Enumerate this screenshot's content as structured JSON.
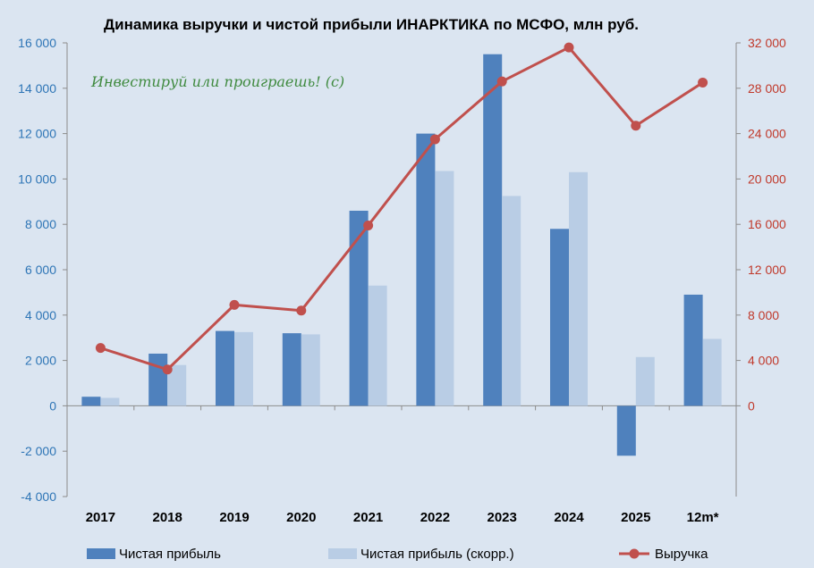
{
  "chart_data": {
    "type": "bar",
    "title": "Динамика выручки и чистой прибыли ИНАРКТИКА по МСФО, млн руб.",
    "watermark": "Инвестируй или проиграешь! (с)",
    "categories": [
      "2017",
      "2018",
      "2019",
      "2020",
      "2021",
      "2022",
      "2023",
      "2024",
      "2025",
      "12m*"
    ],
    "series": [
      {
        "name": "Чистая прибыль",
        "type": "bar",
        "axis": "left",
        "color": "#4f81bd",
        "values": [
          400,
          2300,
          3300,
          3200,
          8600,
          12000,
          15500,
          7800,
          -2200,
          4900
        ]
      },
      {
        "name": "Чистая прибыль (скорр.)",
        "type": "bar",
        "axis": "left",
        "color": "#b9cde5",
        "values": [
          350,
          1800,
          3250,
          3150,
          5300,
          10350,
          9250,
          10300,
          2150,
          2950
        ]
      },
      {
        "name": "Выручка",
        "type": "line",
        "axis": "right",
        "color": "#c0504d",
        "values": [
          5100,
          3200,
          8900,
          8400,
          15900,
          23500,
          28600,
          31600,
          24700,
          28500
        ]
      }
    ],
    "y_left": {
      "min": -4000,
      "max": 16000,
      "ticks": [
        -4000,
        -2000,
        0,
        2000,
        4000,
        6000,
        8000,
        10000,
        12000,
        14000,
        16000
      ],
      "tick_labels": [
        "-4 000",
        "-2 000",
        "0",
        "2 000",
        "4 000",
        "6 000",
        "8 000",
        "10 000",
        "12 000",
        "14 000",
        "16 000"
      ],
      "color": "#2e75b6"
    },
    "y_right": {
      "min": -8000,
      "max": 32000,
      "ticks": [
        0,
        4000,
        8000,
        12000,
        16000,
        20000,
        24000,
        28000,
        32000
      ],
      "tick_labels": [
        "0",
        "4 000",
        "8 000",
        "12 000",
        "16 000",
        "20 000",
        "24 000",
        "28 000",
        "32 000"
      ],
      "color": "#c0392b"
    },
    "legend_position": "bottom",
    "grid": false
  }
}
